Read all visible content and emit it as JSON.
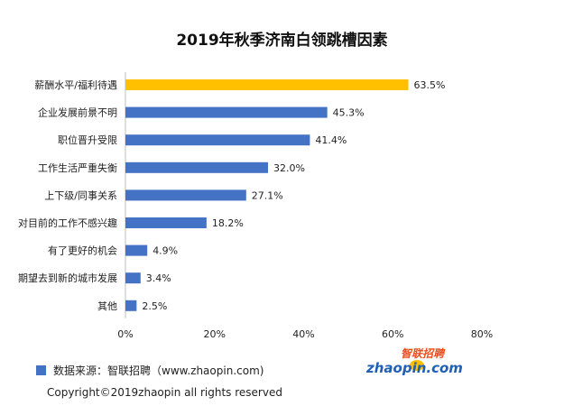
{
  "chart_data": {
    "type": "bar",
    "orientation": "horizontal",
    "title": "2019年秋季济南白领跳槽因素",
    "categories": [
      "薪酬水平/福利待遇",
      "企业发展前景不明",
      "职位晋升受限",
      "工作生活严重失衡",
      "上下级/同事关系",
      "对目前的工作不感兴趣",
      "有了更好的机会",
      "期望去到新的城市发展",
      "其他"
    ],
    "values": [
      63.5,
      45.3,
      41.4,
      32.0,
      27.1,
      18.2,
      4.9,
      3.4,
      2.5
    ],
    "value_labels": [
      "63.5%",
      "45.3%",
      "41.4%",
      "32.0%",
      "27.1%",
      "18.2%",
      "4.9%",
      "3.4%",
      "2.5%"
    ],
    "xlim": [
      0,
      80
    ],
    "x_ticks": [
      "0%",
      "20%",
      "40%",
      "60%",
      "80%"
    ],
    "xlabel": "",
    "ylabel": "",
    "grid": false,
    "colors": {
      "highlight": "#ffc000",
      "default": "#4472c4"
    },
    "highlight_index": 0
  },
  "footer": {
    "source": "数据来源：智联招聘（www.zhaopin.com)",
    "copyright": "Copyright©2019zhaopin all rights reserved"
  },
  "logo": {
    "top_text": "智联招聘",
    "bottom_text": "zhaopin.com",
    "icon": "zhaopin-logo"
  }
}
